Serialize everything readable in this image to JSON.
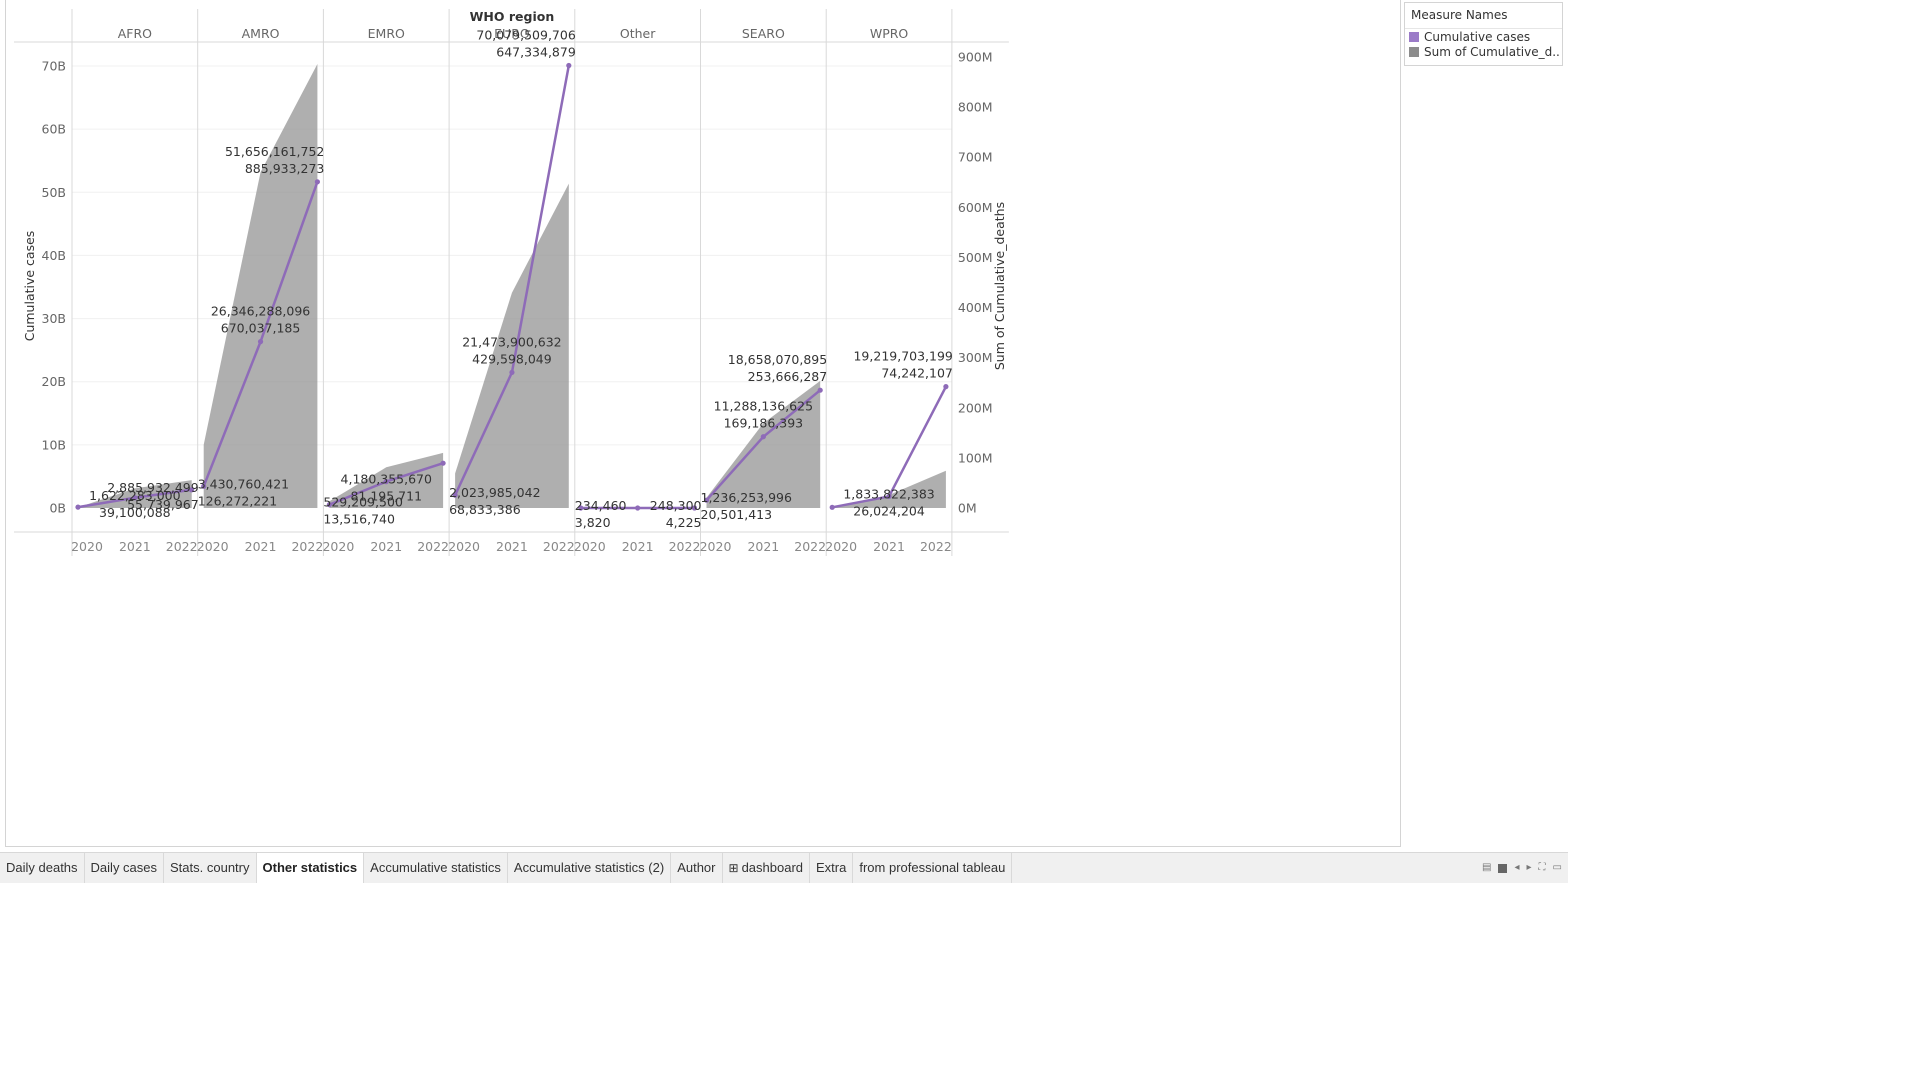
{
  "chart_data": {
    "type": "area-line",
    "title": "WHO region",
    "ylabel_left": "Cumulative cases",
    "ylabel_right": "Sum of Cumulative_deaths",
    "left_ticks": [
      "0B",
      "10B",
      "20B",
      "30B",
      "40B",
      "50B",
      "60B",
      "70B"
    ],
    "left_max": 70000000000,
    "right_ticks": [
      "0M",
      "100M",
      "200M",
      "300M",
      "400M",
      "500M",
      "600M",
      "700M",
      "800M",
      "900M"
    ],
    "right_max": 900000000,
    "years": [
      "2020",
      "2021",
      "2022"
    ],
    "series_colors": {
      "cases": "#8e6bb8",
      "deaths": "#999999"
    },
    "regions": [
      {
        "name": "AFRO",
        "cases": [
          140000000,
          1622283000,
          2885932499
        ],
        "deaths": [
          1200000,
          39100088,
          55739967
        ],
        "labels": [
          {
            "year": 1,
            "top": "1,622,283,000",
            "bottom": "39,100,088"
          },
          {
            "year": 2,
            "top": "2,885,932,499",
            "bottom": "55,739,967"
          }
        ]
      },
      {
        "name": "AMRO",
        "cases": [
          3430760421,
          26346288096,
          51656161752
        ],
        "deaths": [
          126272221,
          670037185,
          885933273
        ],
        "labels": [
          {
            "year": 0,
            "top": "3,430,760,421",
            "bottom": "126,272,221"
          },
          {
            "year": 1,
            "top": "26,346,288,096",
            "bottom": "670,037,185"
          },
          {
            "year": 2,
            "top": "51,656,161,752",
            "bottom": "885,933,273"
          }
        ]
      },
      {
        "name": "EMRO",
        "cases": [
          529209500,
          4180355670,
          7100000000
        ],
        "deaths": [
          13516740,
          81195711,
          110000000
        ],
        "labels": [
          {
            "year": 0,
            "top": "529,209,500",
            "bottom": "13,516,740"
          },
          {
            "year": 1,
            "top": "4,180,355,670",
            "bottom": "81,195,711"
          }
        ]
      },
      {
        "name": "EURO",
        "cases": [
          2023985042,
          21473900632,
          70079509706
        ],
        "deaths": [
          68833386,
          429598049,
          647334879
        ],
        "labels": [
          {
            "year": 0,
            "top": "2,023,985,042",
            "bottom": "68,833,386"
          },
          {
            "year": 1,
            "top": "21,473,900,632",
            "bottom": "429,598,049"
          },
          {
            "year": 2,
            "top": "70,079,509,706",
            "bottom": "647,334,879"
          }
        ]
      },
      {
        "name": "Other",
        "cases": [
          234460,
          241000,
          248300
        ],
        "deaths": [
          3820,
          4020,
          4225
        ],
        "labels": [
          {
            "year": 0,
            "top": "234,460",
            "bottom": "3,820"
          },
          {
            "year": 2,
            "top": "248,300",
            "bottom": "4,225"
          }
        ]
      },
      {
        "name": "SEARO",
        "cases": [
          1236253996,
          11288136625,
          18658070895
        ],
        "deaths": [
          20501413,
          169186393,
          253666287
        ],
        "labels": [
          {
            "year": 0,
            "top": "1,236,253,996",
            "bottom": "20,501,413"
          },
          {
            "year": 1,
            "top": "11,288,136,625",
            "bottom": "169,186,393"
          },
          {
            "year": 2,
            "top": "18,658,070,895",
            "bottom": "253,666,287"
          }
        ]
      },
      {
        "name": "WPRO",
        "cases": [
          110000000,
          1833822383,
          19219703199
        ],
        "deaths": [
          1000000,
          26024204,
          74242107
        ],
        "labels": [
          {
            "year": 1,
            "top": "1,833,822,383",
            "bottom": "26,024,204"
          },
          {
            "year": 2,
            "top": "19,219,703,199",
            "bottom": "74,242,107"
          }
        ]
      }
    ]
  },
  "legend": {
    "title": "Measure Names",
    "items": [
      {
        "label": "Cumulative cases",
        "color": "#9b7bc8"
      },
      {
        "label": "Sum of Cumulative_d..",
        "color": "#8c8c8c"
      }
    ]
  },
  "tabs": [
    {
      "label": "Daily deaths",
      "active": false
    },
    {
      "label": "Daily cases",
      "active": false
    },
    {
      "label": "Stats. country",
      "active": false
    },
    {
      "label": "Other statistics",
      "active": true
    },
    {
      "label": "Accumulative statistics",
      "active": false
    },
    {
      "label": "Accumulative statistics (2)",
      "active": false
    },
    {
      "label": "Author",
      "active": false
    },
    {
      "label": "dashboard",
      "active": false,
      "icon": "dashboard-grid-icon"
    },
    {
      "label": "Extra",
      "active": false
    },
    {
      "label": "from professional tableau",
      "active": false
    }
  ]
}
